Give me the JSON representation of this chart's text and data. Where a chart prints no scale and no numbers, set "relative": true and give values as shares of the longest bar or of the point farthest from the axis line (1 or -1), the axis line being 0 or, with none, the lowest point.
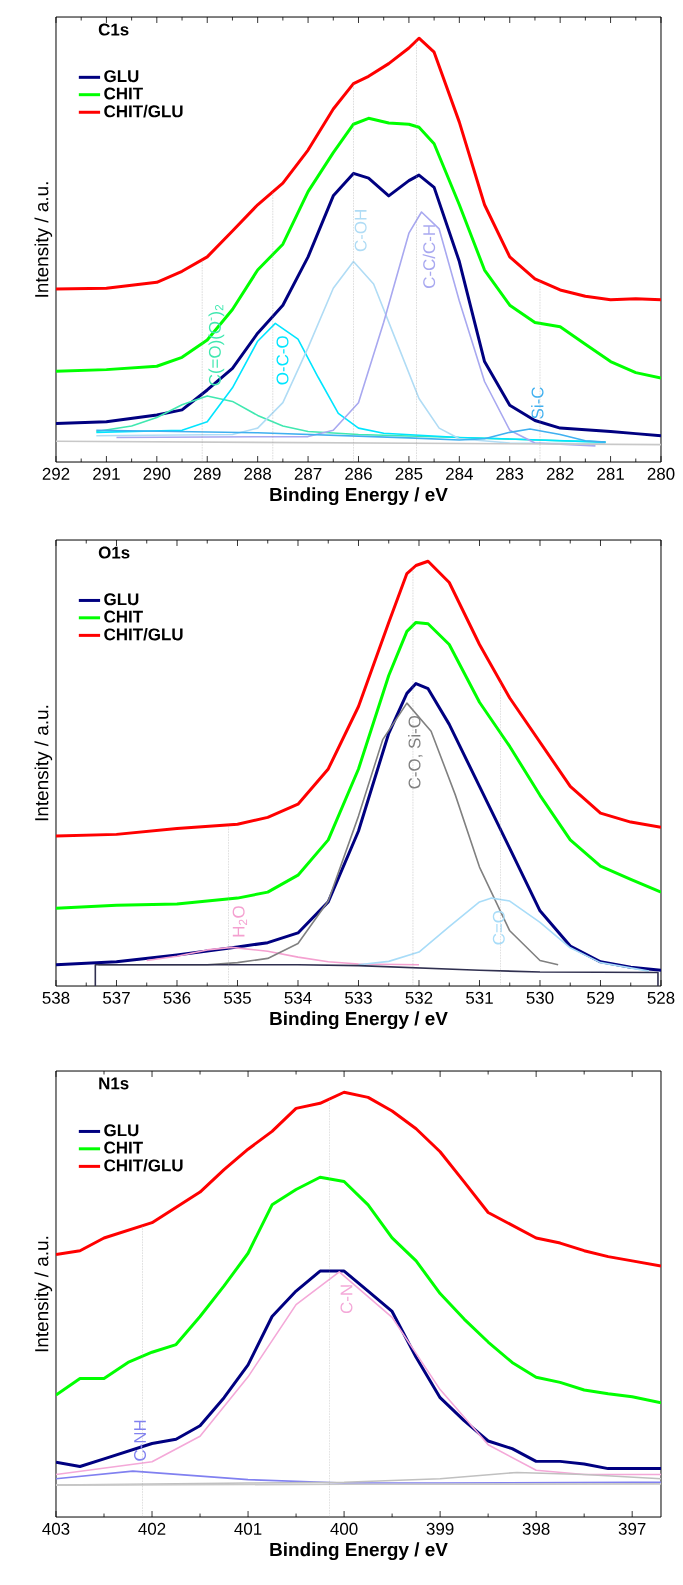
{
  "chart_data": [
    {
      "type": "line",
      "title": "C1s",
      "xlabel": "Binding Energy / eV",
      "ylabel": "Intensity / a.u.",
      "relative": true,
      "legend": "top left",
      "tick_labels": "x",
      "marker": "none",
      "xlim": [
        292,
        280
      ],
      "xticks": [
        292,
        291,
        290,
        289,
        288,
        287,
        286,
        285,
        284,
        283,
        282,
        281,
        280
      ],
      "x": [
        292,
        291,
        290,
        289.5,
        289,
        288.5,
        288,
        287.5,
        287,
        286.5,
        286.1,
        285.8,
        285.4,
        285,
        284.8,
        284.5,
        284,
        283.5,
        283,
        282.5,
        282,
        281.5,
        281,
        280.5,
        280
      ],
      "series": [
        {
          "name": "GLU",
          "color": "#000080",
          "values": [
            0.091,
            0.095,
            0.111,
            0.123,
            0.17,
            0.221,
            0.304,
            0.37,
            0.484,
            0.628,
            0.681,
            0.67,
            0.628,
            0.664,
            0.677,
            0.648,
            0.473,
            0.237,
            0.134,
            0.098,
            0.08,
            0.076,
            0.072,
            0.067,
            0.062
          ]
        },
        {
          "name": "CHIT",
          "color": "#00ff00",
          "values": [
            0.214,
            0.218,
            0.226,
            0.247,
            0.288,
            0.36,
            0.453,
            0.514,
            0.638,
            0.73,
            0.797,
            0.811,
            0.8,
            0.797,
            0.79,
            0.751,
            0.607,
            0.453,
            0.37,
            0.329,
            0.319,
            0.278,
            0.237,
            0.211,
            0.198
          ]
        },
        {
          "name": "CHIT/GLU",
          "color": "#ff0000",
          "values": [
            0.408,
            0.41,
            0.424,
            0.45,
            0.484,
            0.545,
            0.607,
            0.658,
            0.736,
            0.833,
            0.893,
            0.91,
            0.94,
            0.977,
            1.0,
            0.967,
            0.802,
            0.607,
            0.484,
            0.432,
            0.406,
            0.391,
            0.383,
            0.385,
            0.383
          ]
        },
        {
          "name": "C(=O)(O$^{-}$)$_{2}$",
          "color": "#40e8b0",
          "x": [
            291.2,
            290.5,
            290,
            289.5,
            289,
            288.5,
            288,
            287.5,
            287,
            286,
            284,
            282,
            281.1
          ],
          "values": [
            0.072,
            0.085,
            0.105,
            0.135,
            0.156,
            0.143,
            0.11,
            0.085,
            0.072,
            0.065,
            0.058,
            0.05,
            0.047
          ]
        },
        {
          "name": "O-C-O",
          "color": "#00e5ff",
          "x": [
            291.2,
            289.5,
            289,
            288.5,
            288,
            287.65,
            287.2,
            286.8,
            286.4,
            286,
            285.5,
            284,
            281.1
          ],
          "values": [
            0.07,
            0.075,
            0.095,
            0.175,
            0.285,
            0.327,
            0.29,
            0.2,
            0.115,
            0.08,
            0.068,
            0.058,
            0.047
          ]
        },
        {
          "name": "C-OH",
          "color": "#b0dcf5",
          "x": [
            291.2,
            288.5,
            288,
            287.5,
            287,
            286.5,
            286.1,
            285.7,
            285.2,
            284.8,
            284.4,
            284,
            283,
            281.1
          ],
          "values": [
            0.062,
            0.065,
            0.08,
            0.14,
            0.27,
            0.41,
            0.473,
            0.42,
            0.27,
            0.15,
            0.08,
            0.055,
            0.045,
            0.043
          ]
        },
        {
          "name": "C-C/C-H",
          "color": "#a8a8f0",
          "x": [
            290.8,
            287,
            286.5,
            286,
            285.5,
            285,
            284.75,
            284.4,
            284,
            283.5,
            283,
            282.5,
            281.3
          ],
          "values": [
            0.058,
            0.06,
            0.075,
            0.14,
            0.33,
            0.54,
            0.59,
            0.55,
            0.38,
            0.19,
            0.075,
            0.045,
            0.038
          ]
        },
        {
          "name": "Si-C",
          "color": "#40b0f0",
          "x": [
            291.2,
            288,
            285,
            284,
            283.5,
            283,
            282.6,
            282,
            281.5,
            281.1
          ],
          "values": [
            0.075,
            0.069,
            0.057,
            0.052,
            0.055,
            0.07,
            0.078,
            0.065,
            0.05,
            0.047
          ]
        },
        {
          "color": "#c8c8c8",
          "x": [
            292,
            286,
            280
          ],
          "values": [
            0.049,
            0.045,
            0.041
          ]
        }
      ],
      "ref_lines": [
        {
          "axis": "x",
          "value": 289.1,
          "color": "#a0a0a0",
          "line_style": "dotted"
        },
        {
          "axis": "x",
          "value": 287.7,
          "color": "#a0a0a0",
          "line_style": "dotted"
        },
        {
          "axis": "x",
          "value": 286.1,
          "color": "#a0a0a0",
          "line_style": "dotted"
        },
        {
          "axis": "x",
          "value": 284.85,
          "color": "#a0a0a0",
          "line_style": "dotted"
        },
        {
          "axis": "x",
          "value": 282.4,
          "color": "#a0a0a0",
          "line_style": "dotted"
        }
      ]
    },
    {
      "type": "line",
      "title": "O1s",
      "xlabel": "Binding Energy / eV",
      "ylabel": "Intensity / a.u.",
      "relative": true,
      "legend": "top left",
      "tick_labels": "x",
      "marker": "none",
      "xlim": [
        538,
        528
      ],
      "xticks": [
        538,
        537,
        536,
        535,
        534,
        533,
        532,
        531,
        530,
        529,
        528
      ],
      "x": [
        538,
        537,
        536,
        535,
        534.5,
        534,
        533.5,
        533,
        532.5,
        532.2,
        532.05,
        531.85,
        531.5,
        531,
        530.5,
        530,
        529.5,
        529,
        528.5,
        528
      ],
      "series": [
        {
          "name": "GLU",
          "color": "#000080",
          "values": [
            0.05,
            0.057,
            0.073,
            0.092,
            0.102,
            0.125,
            0.198,
            0.365,
            0.595,
            0.689,
            0.712,
            0.7,
            0.616,
            0.47,
            0.324,
            0.177,
            0.094,
            0.057,
            0.044,
            0.037
          ]
        },
        {
          "name": "CHIT",
          "color": "#00ff00",
          "values": [
            0.183,
            0.19,
            0.193,
            0.207,
            0.221,
            0.261,
            0.344,
            0.511,
            0.731,
            0.835,
            0.856,
            0.853,
            0.804,
            0.668,
            0.564,
            0.449,
            0.344,
            0.282,
            0.251,
            0.221
          ]
        },
        {
          "name": "CHIT/GLU",
          "color": "#ff0000",
          "values": [
            0.353,
            0.357,
            0.371,
            0.381,
            0.397,
            0.428,
            0.511,
            0.658,
            0.856,
            0.971,
            0.99,
            1.0,
            0.95,
            0.804,
            0.678,
            0.574,
            0.47,
            0.407,
            0.386,
            0.374
          ]
        },
        {
          "name": "H$_{2}$O",
          "color": "#f4a0d0",
          "x": [
            536.5,
            536,
            535.5,
            535.1,
            534.5,
            534,
            533.5,
            533,
            532
          ],
          "values": [
            0.06,
            0.07,
            0.085,
            0.091,
            0.082,
            0.068,
            0.057,
            0.052,
            0.05
          ]
        },
        {
          "name": "C-O, Si-O",
          "color": "#808080",
          "x": [
            537.3,
            535.5,
            535,
            534.5,
            534,
            533.5,
            533,
            532.6,
            532.2,
            531.8,
            531.4,
            531,
            530.5,
            530,
            529.7
          ],
          "values": [
            0.05,
            0.05,
            0.055,
            0.065,
            0.1,
            0.2,
            0.4,
            0.58,
            0.666,
            0.6,
            0.45,
            0.28,
            0.13,
            0.06,
            0.05
          ]
        },
        {
          "name": "C=O",
          "color": "#a8dcf8",
          "x": [
            533,
            532.5,
            532,
            531.5,
            531,
            530.8,
            530.5,
            530,
            529.5,
            529,
            528.2
          ],
          "values": [
            0.05,
            0.058,
            0.08,
            0.14,
            0.198,
            0.207,
            0.2,
            0.15,
            0.09,
            0.055,
            0.035
          ]
        },
        {
          "color": "#303050",
          "x": [
            537.35,
            537.35,
            534,
            533,
            531,
            530,
            528.05,
            528.05
          ],
          "values": [
            0,
            0.05,
            0.05,
            0.048,
            0.037,
            0.033,
            0.032,
            0
          ]
        }
      ],
      "ref_lines": [
        {
          "axis": "x",
          "value": 535.15,
          "color": "#a0a0a0",
          "line_style": "dotted"
        },
        {
          "axis": "x",
          "value": 532.1,
          "color": "#a0a0a0",
          "line_style": "dotted"
        },
        {
          "axis": "x",
          "value": 530.65,
          "color": "#a0a0a0",
          "line_style": "dotted"
        }
      ]
    },
    {
      "type": "line",
      "title": "N1s",
      "xlabel": "Binding Energy / eV",
      "ylabel": "Intensity / a.u.",
      "relative": true,
      "legend": "top left",
      "tick_labels": "x",
      "marker": "none",
      "xlim": [
        403,
        396.7
      ],
      "xticks": [
        403,
        402,
        401,
        400,
        399,
        398,
        397
      ],
      "x": [
        403,
        402.75,
        402.5,
        402.25,
        402,
        401.75,
        401.5,
        401.25,
        401,
        400.75,
        400.5,
        400.25,
        400,
        399.75,
        399.5,
        399.25,
        399,
        398.75,
        398.5,
        398.25,
        398,
        397.75,
        397.5,
        397.25,
        397,
        396.7
      ],
      "series": [
        {
          "name": "GLU",
          "color": "#000080",
          "values": [
            0.129,
            0.119,
            0.137,
            0.155,
            0.173,
            0.183,
            0.215,
            0.281,
            0.358,
            0.472,
            0.532,
            0.579,
            0.579,
            0.532,
            0.484,
            0.376,
            0.281,
            0.227,
            0.179,
            0.161,
            0.131,
            0.131,
            0.125,
            0.114,
            0.114,
            0.114
          ]
        },
        {
          "name": "CHIT",
          "color": "#00ff00",
          "values": [
            0.287,
            0.326,
            0.326,
            0.364,
            0.388,
            0.406,
            0.472,
            0.544,
            0.621,
            0.735,
            0.771,
            0.8,
            0.79,
            0.735,
            0.657,
            0.603,
            0.526,
            0.466,
            0.412,
            0.364,
            0.329,
            0.317,
            0.299,
            0.29,
            0.283,
            0.269
          ]
        },
        {
          "name": "CHIT/GLU",
          "color": "#ff0000",
          "values": [
            0.618,
            0.627,
            0.657,
            0.675,
            0.693,
            0.729,
            0.765,
            0.818,
            0.866,
            0.908,
            0.962,
            0.974,
            1.0,
            0.988,
            0.956,
            0.914,
            0.86,
            0.789,
            0.717,
            0.687,
            0.657,
            0.645,
            0.627,
            0.613,
            0.603,
            0.591
          ]
        },
        {
          "name": "C-NH",
          "color": "#8080f0",
          "x": [
            403,
            402.2,
            401,
            400,
            399,
            397,
            396.7
          ],
          "values": [
            0.09,
            0.108,
            0.088,
            0.08,
            0.08,
            0.082,
            0.082
          ]
        },
        {
          "name": "C-N",
          "color": "#f4a8d8",
          "x": [
            403,
            402,
            401.5,
            401,
            400.5,
            400.05,
            399.5,
            399,
            398.5,
            398,
            397.5,
            396.7
          ],
          "values": [
            0.1,
            0.13,
            0.19,
            0.33,
            0.5,
            0.577,
            0.47,
            0.3,
            0.17,
            0.11,
            0.1,
            0.1
          ]
        },
        {
          "color": "#c0c0c0",
          "x": [
            403,
            401,
            400,
            399,
            398.2,
            397.5,
            396.7
          ],
          "values": [
            0.075,
            0.08,
            0.082,
            0.09,
            0.105,
            0.1,
            0.09
          ]
        },
        {
          "color": "#c8c8c8",
          "x": [
            403,
            400,
            396.7
          ],
          "values": [
            0.075,
            0.077,
            0.078
          ]
        }
      ],
      "ref_lines": [
        {
          "axis": "x",
          "value": 402.1,
          "color": "#a0a0a0",
          "line_style": "dotted"
        },
        {
          "axis": "x",
          "value": 400.15,
          "color": "#a0a0a0",
          "line_style": "dotted"
        }
      ]
    }
  ]
}
